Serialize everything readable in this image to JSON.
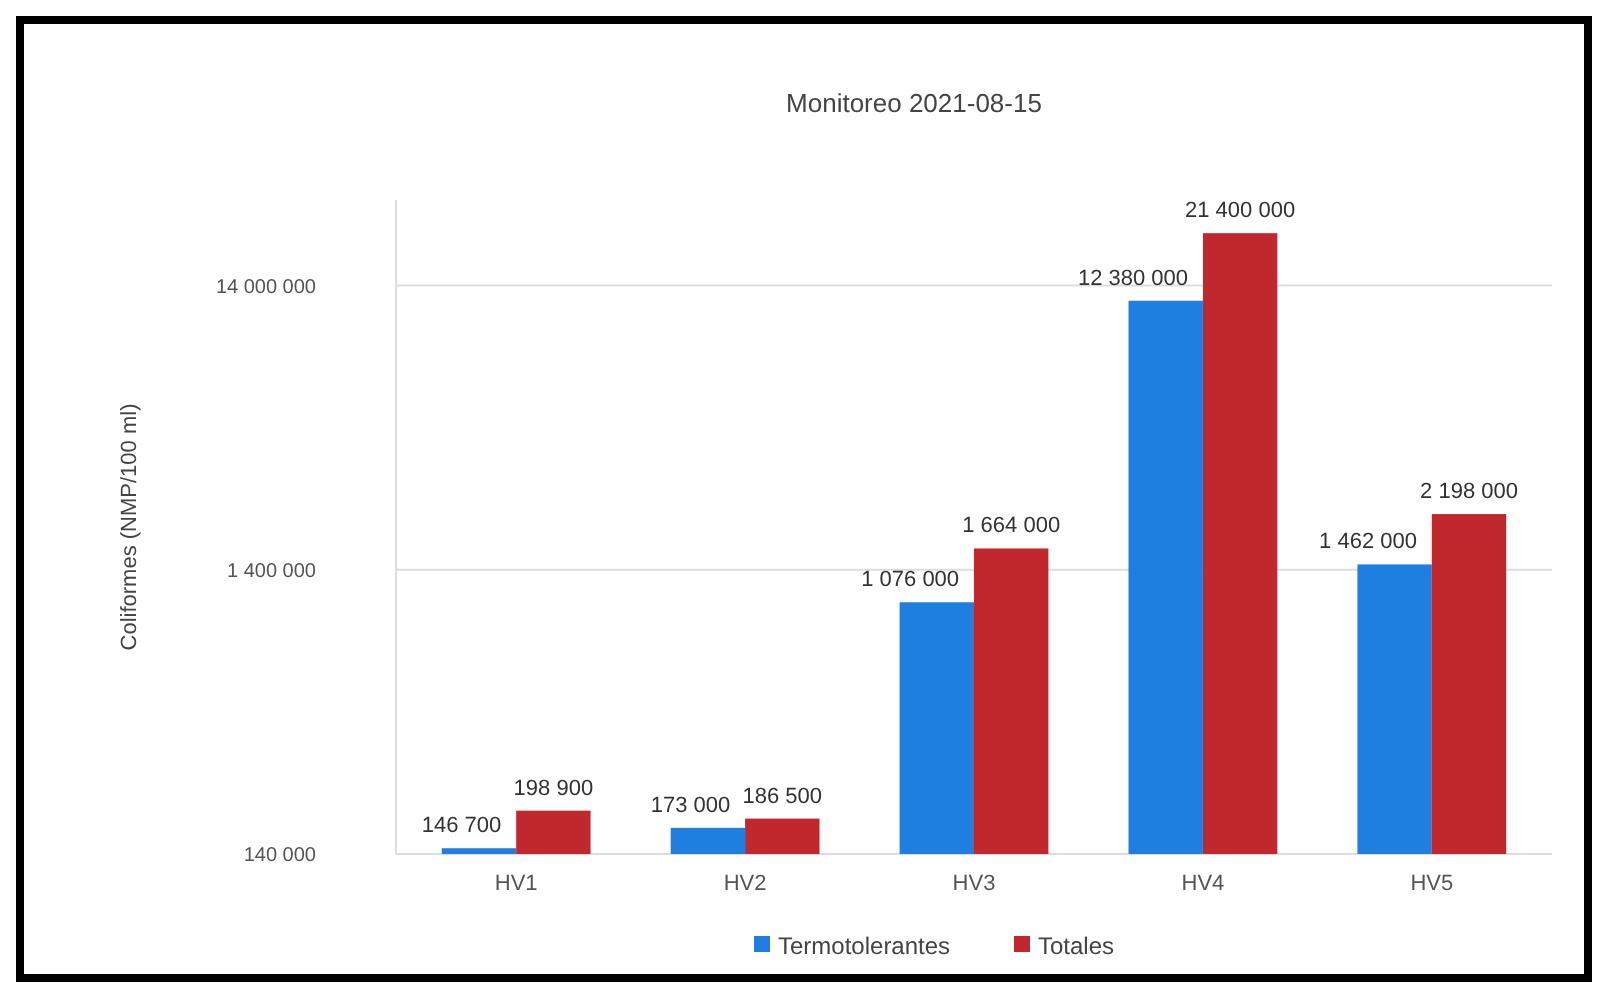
{
  "chart_data": {
    "type": "bar",
    "title": "Monitoreo 2021-08-15",
    "ylabel": "Coliformes (NMP/100 ml)",
    "categories": [
      "HV1",
      "HV2",
      "HV3",
      "HV4",
      "HV5"
    ],
    "series": [
      {
        "name": "Termotolerantes",
        "color": "#1f7fe0",
        "values": [
          146700,
          173000,
          1076000,
          12380000,
          1462000
        ],
        "value_labels": [
          "146 700",
          "173 000",
          "1 076 000",
          "12 380 000",
          "1 462 000"
        ]
      },
      {
        "name": "Totales",
        "color": "#c0282d",
        "values": [
          198900,
          186500,
          1664000,
          21400000,
          2198000
        ],
        "value_labels": [
          "198 900",
          "186 500",
          "1 664 000",
          "21 400 000",
          "2 198 000"
        ]
      }
    ],
    "log": true,
    "ylim": [
      140000,
      28000000
    ],
    "yticks": [
      {
        "value": 140000,
        "label": "140 000"
      },
      {
        "value": 1400000,
        "label": "1 400 000"
      },
      {
        "value": 14000000,
        "label": "14 000 000"
      }
    ],
    "grid": "y",
    "legend": "bottom"
  }
}
